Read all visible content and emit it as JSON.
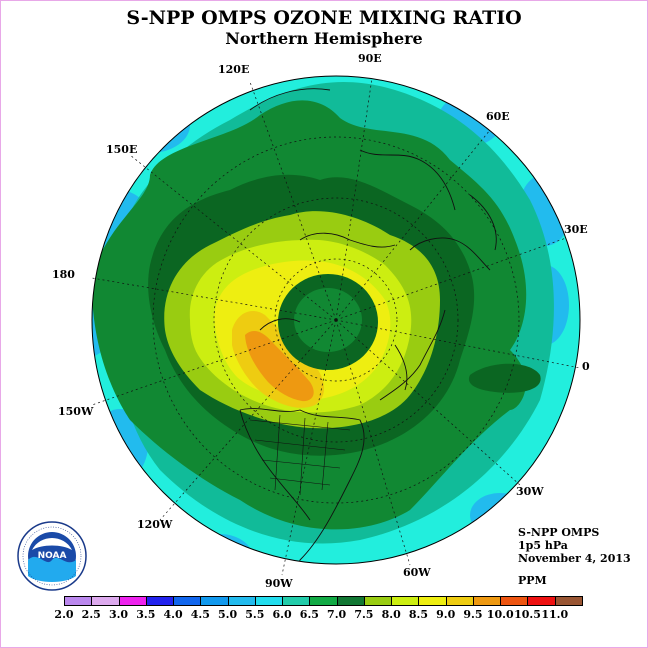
{
  "header": {
    "title": "S-NPP OMPS OZONE MIXING RATIO",
    "subtitle": "Northern Hemisphere"
  },
  "longitude_labels": {
    "e120": "120E",
    "e90": "90E",
    "e60": "60E",
    "e150": "150E",
    "e30": "30E",
    "lon180": "180",
    "lon0": "0",
    "w150": "150W",
    "w30": "30W",
    "w120": "120W",
    "w60": "60W",
    "w90": "90W"
  },
  "info": {
    "instrument": "S-NPP OMPS",
    "level": "1p5 hPa",
    "date": "November 4, 2013",
    "units": "PPM"
  },
  "logo": {
    "text": "NOAA",
    "ring_text": "NATIONAL OCEANIC AND ATMOSPHERIC ADMINISTRATION · U.S. DEPARTMENT OF COMMERCE"
  },
  "legend": {
    "labels": [
      "2.0",
      "2.5",
      "3.0",
      "3.5",
      "4.0",
      "4.5",
      "5.0",
      "5.5",
      "6.0",
      "6.5",
      "7.0",
      "7.5",
      "8.0",
      "8.5",
      "9.0",
      "9.5",
      "10.0",
      "10.5",
      "11.0"
    ],
    "colors": [
      "#bb88ee",
      "#ddaaee",
      "#ee22ee",
      "#2222ee",
      "#1166ee",
      "#1199ee",
      "#22bbee",
      "#22ddee",
      "#22ccaa",
      "#11aa44",
      "#117733",
      "#99cc11",
      "#ccee11",
      "#eeee11",
      "#eecc11",
      "#ee9911",
      "#ee5511",
      "#ee1111",
      "#995533"
    ]
  },
  "colors": {
    "band_5_5": "#22eedd",
    "band_6_0": "#11bb99",
    "band_6_5": "#118833",
    "band_7_0": "#0b6622",
    "band_7_5": "#99cc11",
    "band_8_0": "#ccee11",
    "band_8_5": "#eeee11",
    "band_9_0": "#eecc11",
    "band_9_5": "#ee9911",
    "band_5_0": "#22bbee"
  }
}
